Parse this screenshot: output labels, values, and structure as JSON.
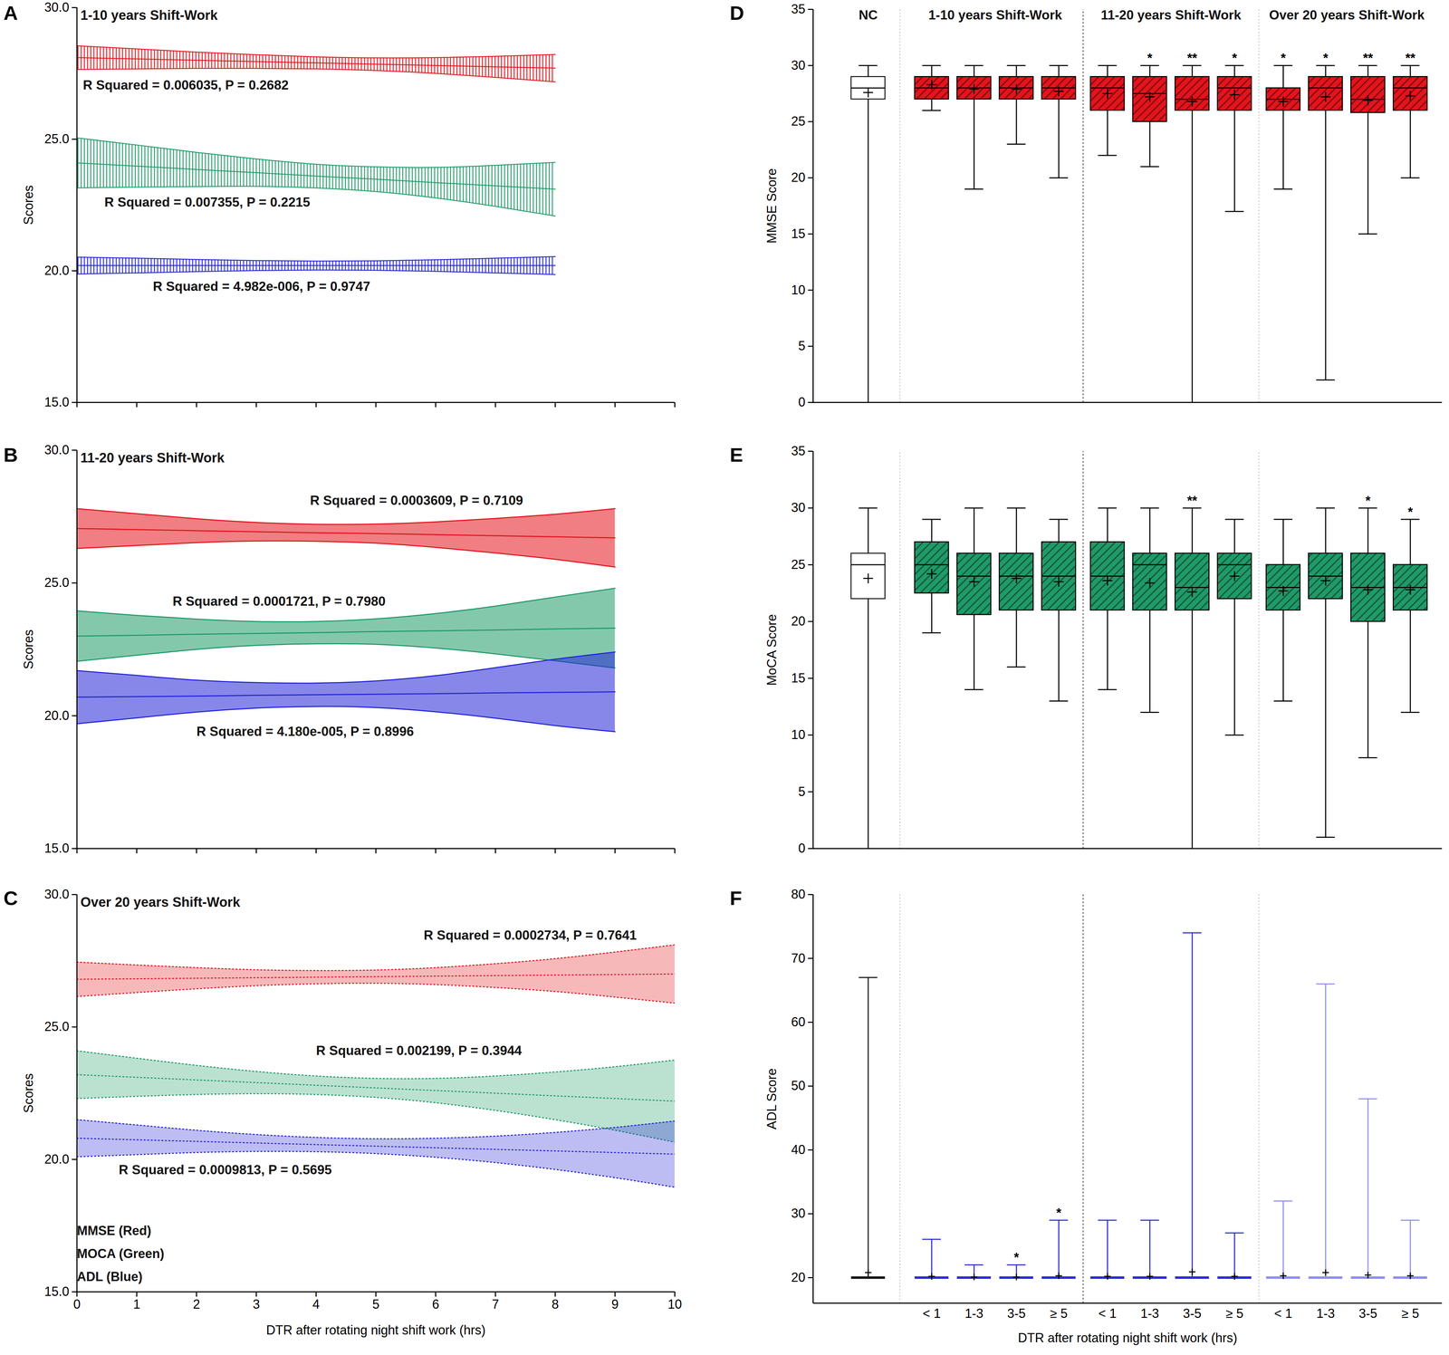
{
  "chart_data": [
    {
      "type": "line",
      "panel": "A",
      "title": "1-10 years Shift-Work",
      "y_label": "Scores",
      "x": [
        0,
        1,
        2,
        3,
        4,
        5,
        6,
        7,
        8
      ],
      "xlim": [
        0,
        10
      ],
      "xticks": [
        0,
        1,
        2,
        3,
        4,
        5,
        6,
        7,
        8,
        9,
        10
      ],
      "ylim": [
        15,
        30
      ],
      "yticks": [
        15,
        20,
        25,
        30
      ],
      "tick_labels": "y",
      "series": [
        {
          "color": "#e3141c",
          "line_style": "solid",
          "values": [
            28.1,
            28.05,
            28.0,
            27.95,
            27.9,
            27.85,
            27.8,
            27.75,
            27.7
          ],
          "lower": [
            27.65,
            27.67,
            27.69,
            27.69,
            27.67,
            27.61,
            27.5,
            27.35,
            27.18
          ],
          "upper": [
            28.55,
            28.43,
            28.31,
            28.21,
            28.13,
            28.09,
            28.1,
            28.15,
            28.22
          ],
          "annotation": {
            "text": "R Squared = 0.006035, P = 0.2682",
            "x": 0.1,
            "y": 27.05
          }
        },
        {
          "color": "#1f9a68",
          "line_style": "solid",
          "values": [
            24.1,
            23.98,
            23.85,
            23.73,
            23.6,
            23.48,
            23.35,
            23.23,
            23.1
          ],
          "lower": [
            23.15,
            23.18,
            23.2,
            23.21,
            23.15,
            23.01,
            22.77,
            22.45,
            22.08
          ],
          "upper": [
            25.05,
            24.78,
            24.5,
            24.25,
            24.05,
            23.95,
            23.93,
            24.01,
            24.12
          ],
          "annotation": {
            "text": "R Squared = 0.007355, P = 0.2215",
            "x": 0.46,
            "y": 22.6
          }
        },
        {
          "color": "#2424d8",
          "line_style": "solid",
          "values": [
            20.2,
            20.2,
            20.2,
            20.2,
            20.2,
            20.2,
            20.2,
            20.2,
            20.2
          ],
          "lower": [
            19.88,
            19.92,
            19.97,
            20.01,
            20.03,
            20.02,
            19.98,
            19.92,
            19.86
          ],
          "upper": [
            20.52,
            20.48,
            20.43,
            20.39,
            20.37,
            20.38,
            20.42,
            20.48,
            20.54
          ],
          "annotation": {
            "text": "R Squared = 4.982e-006, P = 0.9747",
            "x": 1.27,
            "y": 19.4
          }
        }
      ]
    },
    {
      "type": "line",
      "panel": "B",
      "title": "11-20 years Shift-Work",
      "y_label": "Scores",
      "x": [
        0,
        1,
        2,
        3,
        4,
        5,
        6,
        7,
        8,
        9
      ],
      "xlim": [
        0,
        10
      ],
      "xticks": [
        0,
        1,
        2,
        3,
        4,
        5,
        6,
        7,
        8,
        9,
        10
      ],
      "ylim": [
        15,
        30
      ],
      "yticks": [
        15,
        20,
        25,
        30
      ],
      "tick_labels": "y",
      "series": [
        {
          "color": "#e3141c",
          "line_style": "solid",
          "values": [
            27.05,
            27.01,
            26.97,
            26.93,
            26.89,
            26.86,
            26.82,
            26.78,
            26.74,
            26.7
          ],
          "lower": [
            26.3,
            26.41,
            26.52,
            26.58,
            26.57,
            26.5,
            26.34,
            26.13,
            25.89,
            25.6
          ],
          "upper": [
            27.8,
            27.61,
            27.42,
            27.28,
            27.21,
            27.22,
            27.3,
            27.43,
            27.59,
            27.8
          ],
          "annotation": {
            "text": "R Squared = 0.0003609, P = 0.7109",
            "x": 3.9,
            "y": 28.1
          }
        },
        {
          "color": "#1f9a68",
          "line_style": "solid",
          "values": [
            23.0,
            23.03,
            23.07,
            23.1,
            23.13,
            23.17,
            23.2,
            23.23,
            23.27,
            23.3
          ],
          "lower": [
            22.05,
            22.28,
            22.5,
            22.65,
            22.71,
            22.69,
            22.55,
            22.33,
            22.07,
            21.8
          ],
          "upper": [
            23.95,
            23.78,
            23.64,
            23.55,
            23.55,
            23.65,
            23.85,
            24.13,
            24.47,
            24.8
          ],
          "annotation": {
            "text": "R Squared = 0.0001721, P = 0.7980",
            "x": 1.6,
            "y": 24.3
          }
        },
        {
          "color": "#2424d8",
          "line_style": "solid",
          "values": [
            20.7,
            20.72,
            20.74,
            20.77,
            20.79,
            20.81,
            20.83,
            20.86,
            20.88,
            20.9
          ],
          "lower": [
            19.7,
            19.92,
            20.14,
            20.29,
            20.35,
            20.31,
            20.15,
            19.91,
            19.63,
            19.4
          ],
          "upper": [
            21.7,
            21.52,
            21.34,
            21.25,
            21.23,
            21.31,
            21.51,
            21.81,
            22.13,
            22.4
          ],
          "annotation": {
            "text": "R Squared = 4.180e-005, P = 0.8996",
            "x": 2.0,
            "y": 19.4
          }
        }
      ]
    },
    {
      "type": "line",
      "panel": "C",
      "title": "Over 20 years Shift-Work",
      "y_label": "Scores",
      "x_label": "DTR after rotating night shift work (hrs)",
      "x": [
        0,
        1,
        2,
        3,
        4,
        5,
        6,
        7,
        8,
        9,
        10
      ],
      "xlim": [
        0,
        10
      ],
      "xticks": [
        0,
        1,
        2,
        3,
        4,
        5,
        6,
        7,
        8,
        9,
        10
      ],
      "ylim": [
        15,
        30
      ],
      "yticks": [
        15,
        20,
        25,
        30
      ],
      "tick_labels": true,
      "series": [
        {
          "color": "#e3141c",
          "line_style": "dotted",
          "values": [
            26.8,
            26.82,
            26.84,
            26.86,
            26.88,
            26.9,
            26.92,
            26.94,
            26.96,
            26.98,
            27.0
          ],
          "lower": [
            26.15,
            26.3,
            26.44,
            26.56,
            26.63,
            26.65,
            26.6,
            26.49,
            26.34,
            26.13,
            25.9
          ],
          "upper": [
            27.45,
            27.34,
            27.24,
            27.16,
            27.13,
            27.15,
            27.24,
            27.39,
            27.58,
            27.83,
            28.1
          ],
          "annotation": {
            "text": "R Squared = 0.0002734, P = 0.7641",
            "x": 5.8,
            "y": 28.45
          }
        },
        {
          "color": "#1f9a68",
          "line_style": "dotted",
          "values": [
            23.2,
            23.1,
            23.0,
            22.9,
            22.8,
            22.7,
            22.6,
            22.5,
            22.4,
            22.3,
            22.2
          ],
          "lower": [
            22.3,
            22.38,
            22.45,
            22.48,
            22.45,
            22.34,
            22.14,
            21.85,
            21.5,
            21.1,
            20.65
          ],
          "upper": [
            24.1,
            23.82,
            23.55,
            23.32,
            23.15,
            23.06,
            23.06,
            23.15,
            23.3,
            23.5,
            23.75
          ],
          "annotation": {
            "text": "R Squared = 0.002199, P = 0.3944",
            "x": 4.0,
            "y": 24.1
          }
        },
        {
          "color": "#2424d8",
          "line_style": "dotted",
          "values": [
            20.8,
            20.74,
            20.68,
            20.62,
            20.56,
            20.5,
            20.44,
            20.38,
            20.32,
            20.26,
            20.2
          ],
          "lower": [
            20.1,
            20.18,
            20.26,
            20.3,
            20.29,
            20.22,
            20.08,
            19.88,
            19.62,
            19.31,
            18.95
          ],
          "upper": [
            21.5,
            21.3,
            21.1,
            20.94,
            20.83,
            20.78,
            20.8,
            20.88,
            21.02,
            21.21,
            21.45
          ],
          "annotation": {
            "text": "R Squared = 0.0009813, P = 0.5695",
            "x": 0.7,
            "y": 19.6
          }
        }
      ],
      "annotations": [
        {
          "text": "MMSE (Red)",
          "x": 0,
          "y": 17.3
        },
        {
          "text": "MOCA (Green)",
          "x": 0,
          "y": 16.43
        },
        {
          "text": "ADL (Blue)",
          "x": 0,
          "y": 15.56
        }
      ]
    },
    {
      "type": "box",
      "panel": "D",
      "y_label": "MMSE Score",
      "ylim": [
        0,
        35
      ],
      "yticks": [
        0,
        5,
        10,
        15,
        20,
        25,
        30,
        35
      ],
      "tick_labels": "y",
      "groups": [
        {
          "name": "NC",
          "count": 1
        },
        {
          "name": "1-10 years Shift-Work",
          "count": 4
        },
        {
          "name": "11-20 years Shift-Work",
          "count": 4
        },
        {
          "name": "Over 20 years Shift-Work",
          "count": 4
        }
      ],
      "colors": [
        "#ffffff",
        "#e3141c",
        "#e3141c",
        "#e3141c",
        "#e3141c",
        "#e3141c",
        "#e3141c",
        "#e3141c",
        "#e3141c",
        "#e3141c",
        "#e3141c",
        "#e3141c",
        "#e3141c"
      ],
      "min": [
        0,
        26,
        19,
        23,
        20,
        22,
        21,
        0,
        17,
        19,
        2,
        15,
        20
      ],
      "q1": [
        27,
        27,
        27,
        27,
        27,
        26,
        25,
        26,
        26,
        26,
        26,
        25.8,
        26
      ],
      "median": [
        28,
        28,
        28,
        28,
        28,
        28,
        27.5,
        27,
        28,
        27,
        28,
        27,
        28
      ],
      "q3": [
        29,
        29,
        29,
        29,
        29,
        29,
        29,
        29,
        29,
        28,
        29,
        29,
        29
      ],
      "max": [
        30,
        30,
        30,
        30,
        30,
        30,
        30,
        30,
        30,
        30,
        30,
        30,
        30
      ],
      "mean": [
        27.6,
        28.3,
        27.9,
        27.9,
        27.7,
        27.5,
        27.2,
        26.8,
        27.4,
        26.8,
        27.2,
        26.9,
        27.3
      ],
      "significance": [
        null,
        null,
        null,
        null,
        null,
        null,
        "*",
        "**",
        "*",
        "*",
        "*",
        "**",
        "**"
      ]
    },
    {
      "type": "box",
      "panel": "E",
      "y_label": "MoCA Score",
      "ylim": [
        0,
        35
      ],
      "yticks": [
        0,
        5,
        10,
        15,
        20,
        25,
        30,
        35
      ],
      "tick_labels": "y",
      "group_counts": [
        1,
        4,
        4,
        4
      ],
      "colors": [
        "#ffffff",
        "#1f9a68",
        "#1f9a68",
        "#1f9a68",
        "#1f9a68",
        "#1f9a68",
        "#1f9a68",
        "#1f9a68",
        "#1f9a68",
        "#1f9a68",
        "#1f9a68",
        "#1f9a68",
        "#1f9a68"
      ],
      "min": [
        0,
        19,
        14,
        16,
        13,
        14,
        12,
        0,
        10,
        13,
        1,
        8,
        12
      ],
      "q1": [
        22,
        22.5,
        20.6,
        21,
        21,
        21,
        21,
        21,
        22,
        21,
        22,
        20,
        21
      ],
      "median": [
        25,
        25,
        24,
        24,
        24,
        24,
        25,
        23,
        25,
        23,
        24,
        23,
        23
      ],
      "q3": [
        26,
        27,
        26,
        26,
        27,
        27,
        26,
        26,
        26,
        25,
        26,
        26,
        25
      ],
      "max": [
        30,
        29,
        30,
        30,
        29,
        30,
        30,
        30,
        29,
        29,
        30,
        30,
        29
      ],
      "mean": [
        23.8,
        24.2,
        23.5,
        23.8,
        23.5,
        23.6,
        23.4,
        22.6,
        24.0,
        22.7,
        23.6,
        22.8,
        22.8
      ],
      "significance": [
        null,
        null,
        null,
        null,
        null,
        null,
        null,
        "**",
        null,
        null,
        null,
        "*",
        "*"
      ]
    },
    {
      "type": "box",
      "panel": "F",
      "y_label": "ADL Score",
      "x_label": "DTR after rotating night shift work (hrs)",
      "categories": [
        null,
        "< 1",
        "1-3",
        "3-5",
        "≥ 5",
        "< 1",
        "1-3",
        "3-5",
        "≥ 5",
        "< 1",
        "1-3",
        "3-5",
        "≥ 5"
      ],
      "ylim": [
        16,
        80
      ],
      "yticks": [
        20,
        30,
        40,
        50,
        60,
        70,
        80
      ],
      "tick_labels": true,
      "group_counts": [
        1,
        4,
        4,
        4
      ],
      "colors": [
        "#111111",
        "#2a2ad6",
        "#2a2ad6",
        "#2a2ad6",
        "#2a2ad6",
        "#2a2ad6",
        "#2a2ad6",
        "#2a2ad6",
        "#2a2ad6",
        "#8d8def",
        "#8d8def",
        "#8d8def",
        "#8d8def"
      ],
      "min": [
        20,
        20,
        20,
        20,
        20,
        20,
        20,
        20,
        20,
        20,
        20,
        20,
        20
      ],
      "q1": [
        20,
        20,
        20,
        20,
        20,
        20,
        20,
        20,
        20,
        20,
        20,
        20,
        20
      ],
      "median": [
        20,
        20,
        20,
        20,
        20,
        20,
        20,
        20,
        20,
        20,
        20,
        20,
        20
      ],
      "q3": [
        20,
        20,
        20,
        20,
        20,
        20,
        20,
        20,
        20,
        20,
        20,
        20,
        20
      ],
      "max": [
        67,
        26,
        22,
        22,
        29,
        29,
        29,
        74,
        27,
        32,
        66,
        48,
        29
      ],
      "mean": [
        20.8,
        20.2,
        20.1,
        20.1,
        20.3,
        20.2,
        20.2,
        20.9,
        20.2,
        20.3,
        20.8,
        20.4,
        20.3
      ],
      "significance": [
        null,
        null,
        null,
        "*",
        "*",
        null,
        null,
        null,
        null,
        null,
        null,
        null,
        null
      ]
    }
  ]
}
